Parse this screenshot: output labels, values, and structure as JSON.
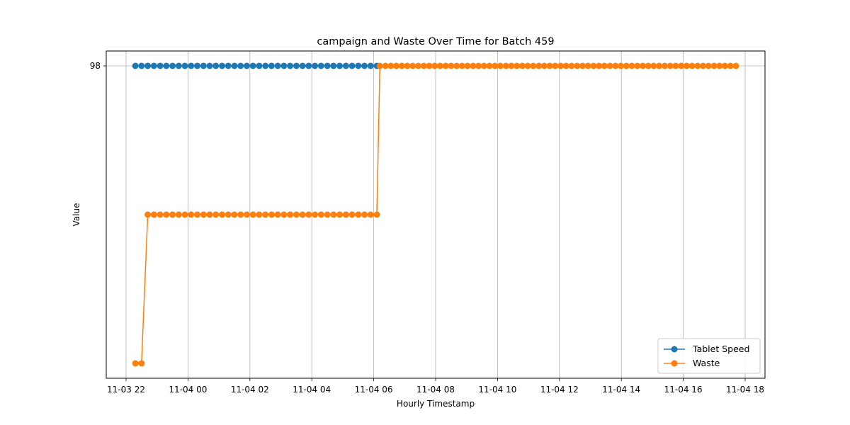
{
  "chart_data": {
    "type": "line",
    "title": "campaign and Waste Over Time for Batch 459",
    "xlabel": "Hourly Timestamp",
    "ylabel": "Value",
    "x_ticks": [
      "11-03 22",
      "11-04 00",
      "11-04 02",
      "11-04 04",
      "11-04 06",
      "11-04 08",
      "11-04 10",
      "11-04 12",
      "11-04 14",
      "11-04 16",
      "11-04 18"
    ],
    "y_ticks": [
      "98"
    ],
    "grid": true,
    "legend_position": "bottom-right",
    "series": [
      {
        "name": "Tablet Speed",
        "color": "#1f77b4",
        "marker": "circle",
        "segments": [
          {
            "from": "11-03 22:18",
            "to": "11-04 06:06",
            "value": 98,
            "points": 40
          }
        ]
      },
      {
        "name": "Waste",
        "color": "#ff7f0e",
        "marker": "circle",
        "segments": [
          {
            "from": "11-03 22:18",
            "to": "11-03 22:30",
            "value": "low",
            "points": 2
          },
          {
            "from": "11-03 22:42",
            "to": "11-04 06:06",
            "value": "mid",
            "points": 38
          },
          {
            "from": "11-04 06:12",
            "to": "11-04 17:42",
            "value": 98,
            "points": 66
          }
        ]
      }
    ]
  }
}
